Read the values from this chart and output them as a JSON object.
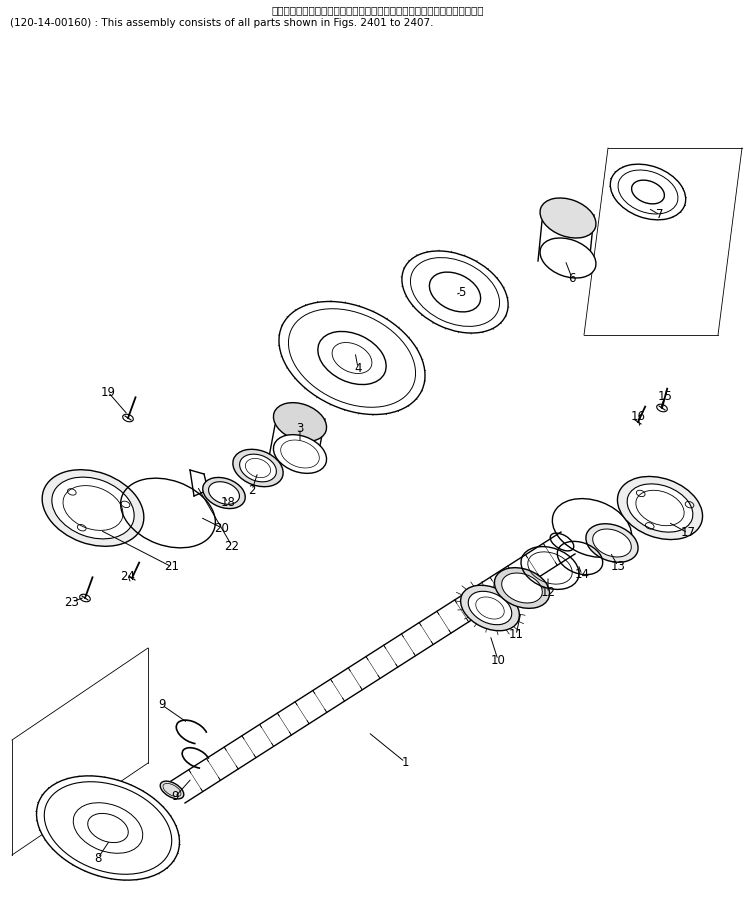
{
  "title_line1": "このアセンブリの構成部品は㇢２４０１図から㇢２４０７図まで含みます。",
  "title_line2": "(120-14-00160) : This assembly consists of all parts shown in Figs. 2401 to 2407.",
  "background_color": "#ffffff",
  "line_color": "#000000",
  "text_color": "#000000",
  "font_size_title": 7.5,
  "font_size_labels": 8.5
}
